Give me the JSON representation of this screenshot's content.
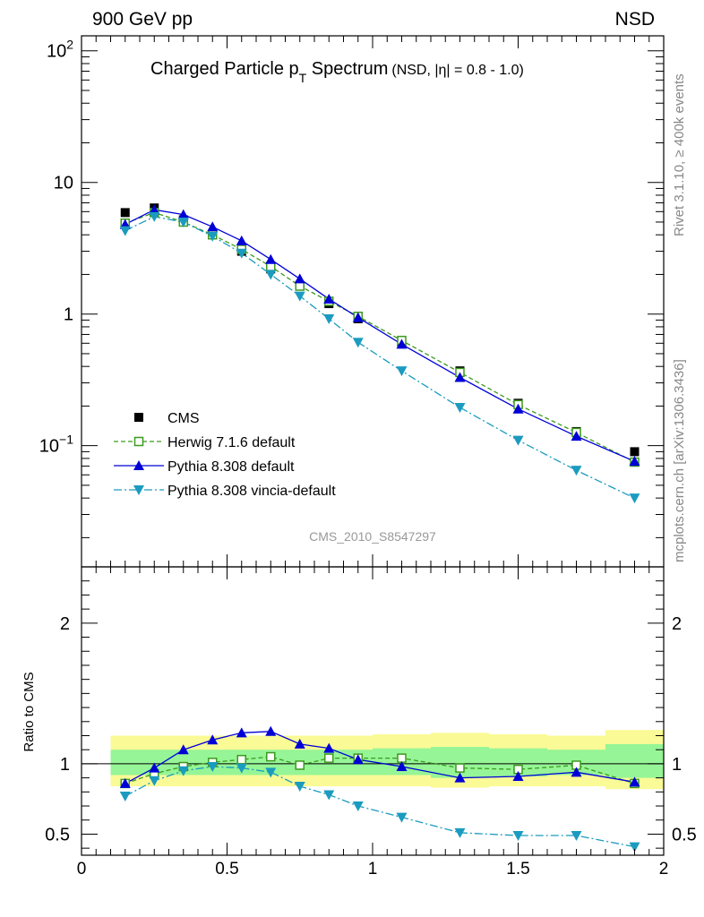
{
  "header": {
    "left": "900 GeV pp",
    "right": "NSD",
    "side_top": "Rivet 3.1.10, ≥ 400k events",
    "side_bottom": "mcplots.cern.ch [arXiv:1306.3436]",
    "watermark": "CMS_2010_S8547297"
  },
  "main_title": {
    "part1": "Charged Particle p",
    "sub": "T",
    "part2": " Spectrum",
    "note": "(NSD, |η| = 0.8 - 1.0)"
  },
  "colors": {
    "data": "#000000",
    "herwig": "#3c9a1e",
    "pythia": "#0000d6",
    "vincia": "#1b9bbf",
    "band_outer": "#fafa96",
    "band_inner": "#96f596"
  },
  "chart_data": [
    {
      "type": "scatter",
      "panel": "main",
      "yscale": "log",
      "xlim": [
        0,
        2
      ],
      "ylim": [
        0.012,
        130
      ],
      "y_ticks": [
        {
          "value": 0.1,
          "base": "10",
          "exp": "−1"
        },
        {
          "value": 1,
          "base": "1",
          "exp": ""
        },
        {
          "value": 10,
          "base": "10",
          "exp": ""
        },
        {
          "value": 100,
          "base": "10",
          "exp": "2"
        }
      ],
      "x": [
        0.15,
        0.25,
        0.35,
        0.45,
        0.55,
        0.65,
        0.75,
        0.85,
        0.95,
        1.1,
        1.3,
        1.5,
        1.7,
        1.9
      ],
      "series": [
        {
          "name": "CMS",
          "key": "data",
          "style": "marker-square",
          "values": [
            5.9,
            6.4,
            5.2,
            4.0,
            3.0,
            2.2,
            1.65,
            1.2,
            0.92,
            0.61,
            0.37,
            0.21,
            0.128,
            0.09
          ]
        },
        {
          "name": "Herwig 7.1.6 default",
          "key": "herwig",
          "style": "open-square-dashed",
          "values": [
            4.9,
            5.9,
            5.0,
            4.0,
            3.1,
            2.3,
            1.63,
            1.25,
            0.96,
            0.63,
            0.36,
            0.205,
            0.126,
            0.075
          ]
        },
        {
          "name": "Pythia 8.308 default",
          "key": "pythia",
          "style": "triangle-up-solid",
          "values": [
            4.8,
            6.2,
            5.7,
            4.6,
            3.6,
            2.6,
            1.85,
            1.3,
            0.94,
            0.59,
            0.33,
            0.19,
            0.118,
            0.076
          ]
        },
        {
          "name": "Pythia 8.308 vincia-default",
          "key": "vincia",
          "style": "triangle-down-dashdot",
          "values": [
            4.3,
            5.5,
            5.0,
            3.9,
            2.9,
            2.0,
            1.37,
            0.92,
            0.61,
            0.37,
            0.195,
            0.11,
            0.065,
            0.04
          ]
        }
      ]
    },
    {
      "type": "scatter",
      "panel": "ratio",
      "ylabel": "Ratio to CMS",
      "xlim": [
        0,
        2
      ],
      "ylim": [
        0.35,
        2.4
      ],
      "y_ticks": [
        0.5,
        1,
        2
      ],
      "y_tick_labels": [
        "0.5",
        "1",
        "2"
      ],
      "x_ticks": [
        0,
        0.5,
        1,
        1.5,
        2
      ],
      "x_tick_labels": [
        "0",
        "0.5",
        "1",
        "1.5",
        "2"
      ],
      "x": [
        0.15,
        0.25,
        0.35,
        0.45,
        0.55,
        0.65,
        0.75,
        0.85,
        0.95,
        1.1,
        1.3,
        1.5,
        1.7,
        1.9
      ],
      "bands": {
        "bins": [
          [
            0.1,
            0.2
          ],
          [
            0.2,
            0.3
          ],
          [
            0.3,
            0.4
          ],
          [
            0.4,
            0.5
          ],
          [
            0.5,
            0.6
          ],
          [
            0.6,
            0.7
          ],
          [
            0.7,
            0.8
          ],
          [
            0.8,
            0.9
          ],
          [
            0.9,
            1.0
          ],
          [
            1.0,
            1.2
          ],
          [
            1.2,
            1.4
          ],
          [
            1.4,
            1.6
          ],
          [
            1.6,
            1.8
          ],
          [
            1.8,
            2.0
          ]
        ],
        "outer_lo": [
          0.84,
          0.84,
          0.84,
          0.84,
          0.84,
          0.84,
          0.84,
          0.84,
          0.84,
          0.84,
          0.83,
          0.84,
          0.84,
          0.82
        ],
        "outer_hi": [
          1.2,
          1.2,
          1.2,
          1.2,
          1.2,
          1.2,
          1.2,
          1.2,
          1.2,
          1.21,
          1.22,
          1.21,
          1.2,
          1.24
        ],
        "inner_lo": [
          0.92,
          0.92,
          0.92,
          0.92,
          0.92,
          0.92,
          0.92,
          0.92,
          0.92,
          0.92,
          0.9,
          0.91,
          0.92,
          0.9
        ],
        "inner_hi": [
          1.1,
          1.1,
          1.1,
          1.1,
          1.1,
          1.1,
          1.1,
          1.1,
          1.1,
          1.11,
          1.12,
          1.11,
          1.1,
          1.14
        ]
      },
      "reference": 1,
      "series": [
        {
          "name": "Herwig 7.1.6 default",
          "key": "herwig",
          "style": "open-square-dashed",
          "values": [
            0.86,
            0.93,
            0.98,
            1.01,
            1.03,
            1.05,
            0.99,
            1.04,
            1.04,
            1.04,
            0.97,
            0.96,
            0.99,
            0.86
          ]
        },
        {
          "name": "Pythia 8.308 default",
          "key": "pythia",
          "style": "triangle-up-solid",
          "values": [
            0.86,
            0.97,
            1.1,
            1.17,
            1.22,
            1.23,
            1.14,
            1.11,
            1.03,
            0.98,
            0.9,
            0.91,
            0.94,
            0.87
          ]
        },
        {
          "name": "Pythia 8.308 vincia-default",
          "key": "vincia",
          "style": "triangle-down-dashdot",
          "values": [
            0.77,
            0.88,
            0.95,
            0.98,
            0.97,
            0.94,
            0.84,
            0.78,
            0.7,
            0.62,
            0.51,
            0.49,
            0.49,
            0.41
          ]
        }
      ]
    }
  ]
}
